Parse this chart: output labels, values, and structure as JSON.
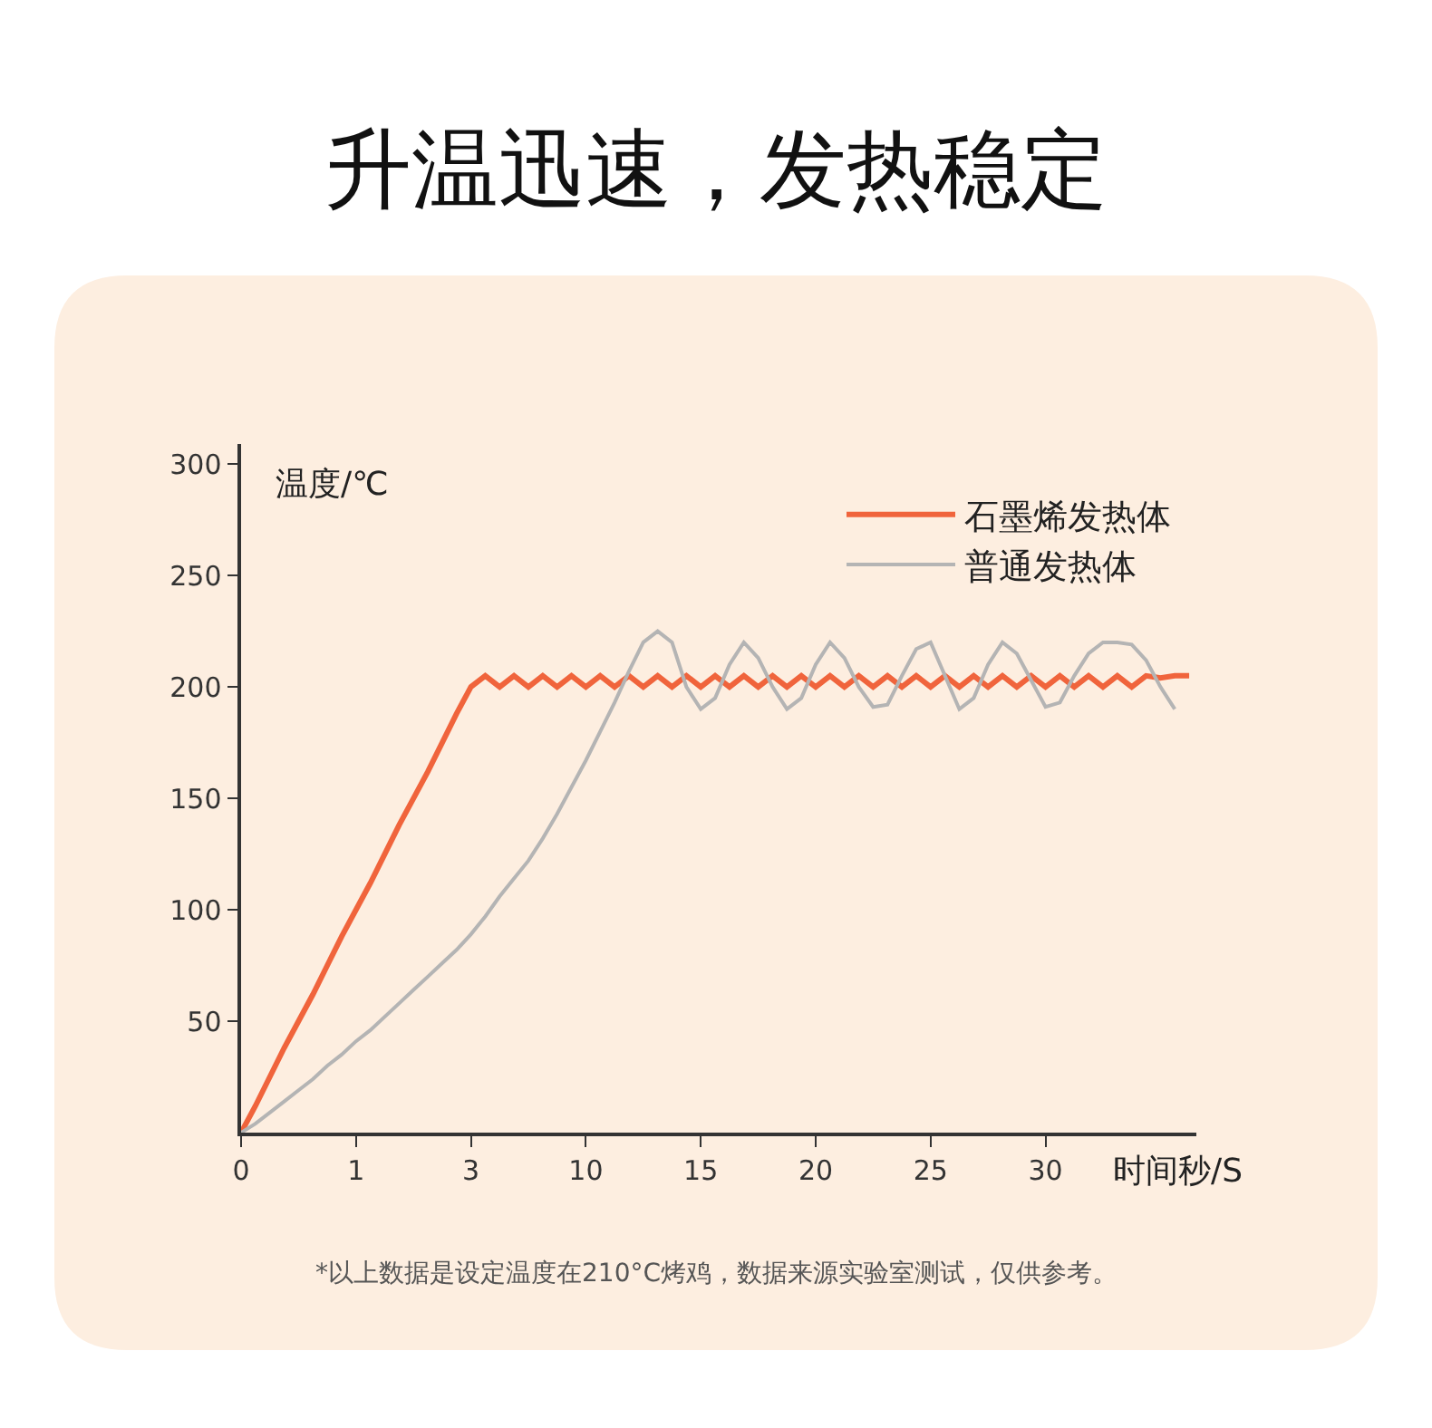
{
  "chart_data": {
    "type": "line",
    "title": "升温迅速，发热稳定",
    "xlabel": "时间秒/S",
    "ylabel": "温度/℃",
    "categories": [
      "0",
      null,
      null,
      null,
      null,
      null,
      null,
      null,
      "1",
      null,
      null,
      null,
      null,
      null,
      null,
      null,
      "3",
      null,
      null,
      null,
      null,
      null,
      null,
      null,
      "10",
      null,
      null,
      null,
      null,
      null,
      null,
      null,
      "15",
      null,
      null,
      null,
      null,
      null,
      null,
      null,
      "20",
      null,
      null,
      null,
      null,
      null,
      null,
      null,
      "25",
      null,
      null,
      null,
      null,
      null,
      null,
      null,
      "30",
      null,
      null,
      null,
      null,
      null,
      null,
      null,
      null,
      null,
      null
    ],
    "series": [
      {
        "name": "石墨烯发热体",
        "color": "#f0643c",
        "values": [
          0,
          12,
          25,
          38,
          50,
          62,
          75,
          88,
          100,
          112,
          125,
          138,
          150,
          162,
          175,
          188,
          200,
          205,
          200,
          205,
          200,
          205,
          200,
          205,
          200,
          205,
          200,
          205,
          200,
          205,
          200,
          205,
          200,
          205,
          200,
          205,
          200,
          205,
          200,
          205,
          200,
          205,
          200,
          205,
          200,
          205,
          200,
          205,
          200,
          205,
          200,
          205,
          200,
          205,
          200,
          205,
          200,
          205,
          200,
          205,
          200,
          205,
          200,
          205,
          204,
          205,
          205
        ]
      },
      {
        "name": "普通发热体",
        "color": "#b4b4b4",
        "values": [
          0,
          4,
          9,
          14,
          19,
          24,
          30,
          35,
          41,
          46,
          52,
          58,
          64,
          70,
          76,
          82,
          89,
          97,
          106,
          114,
          122,
          132,
          143,
          155,
          167,
          180,
          193,
          207,
          220,
          225,
          220,
          200,
          190,
          195,
          210,
          220,
          213,
          200,
          190,
          195,
          210,
          220,
          213,
          200,
          191,
          192,
          205,
          217,
          220,
          205,
          190,
          195,
          210,
          220,
          215,
          203,
          191,
          193,
          205,
          215,
          220,
          220,
          219,
          212,
          200,
          190,
          null
        ]
      }
    ],
    "ylim": [
      0,
      309
    ],
    "yticks": [
      50,
      100,
      150,
      200,
      250,
      300
    ],
    "grid": false,
    "legend": "top right",
    "marker": "none",
    "line_style": "solid",
    "annotations": [
      "*以上数据是设定温度在210°C烤鸡，数据来源实验室测试，仅供参考。"
    ]
  }
}
